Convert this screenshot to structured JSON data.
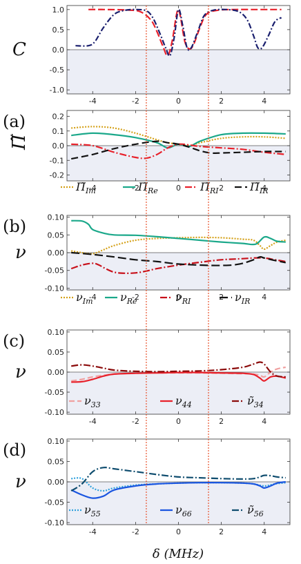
{
  "chart_data": [
    {
      "id": "C",
      "type": "line",
      "panel_label": "",
      "ylabel": "C",
      "ylim": [
        -1.1,
        1.1
      ],
      "yticks": [
        "1.0",
        "0.5",
        "0.0",
        "-0.5",
        "-1.0"
      ],
      "ytick_values": [
        1.0,
        0.5,
        0.0,
        -0.5,
        -1.0
      ],
      "xlim": [
        -5.2,
        5.2
      ],
      "xticks": [
        "-4",
        "-2",
        "0",
        "2",
        "4"
      ],
      "shade_below_zero": true,
      "series": [
        {
          "color": "#e8202a",
          "dash": "10,4",
          "x": [
            -4.2,
            -3.5,
            -2.5,
            -1.8,
            -1.3,
            -1.0,
            -0.7,
            -0.5,
            -0.3,
            -0.1,
            0.0,
            0.1,
            0.3,
            0.5,
            0.7,
            1.0,
            1.3,
            1.8,
            2.5,
            3.5,
            4.5,
            4.8
          ],
          "y": [
            1.0,
            1.0,
            0.99,
            0.95,
            0.75,
            0.45,
            0.05,
            -0.15,
            0.2,
            0.85,
            1.0,
            0.8,
            0.2,
            0.02,
            0.12,
            0.55,
            0.88,
            0.98,
            1.0,
            1.0,
            1.0,
            1.0
          ]
        },
        {
          "color": "#1a1f6e",
          "dash": "8,3,2,3",
          "x": [
            -4.8,
            -4.2,
            -3.9,
            -3.5,
            -3.0,
            -2.5,
            -2.0,
            -1.5,
            -1.2,
            -0.9,
            -0.6,
            -0.4,
            -0.2,
            0.0,
            0.2,
            0.4,
            0.6,
            0.9,
            1.2,
            1.6,
            2.2,
            2.8,
            3.2,
            3.5,
            3.7,
            3.9,
            4.2,
            4.5,
            4.8
          ],
          "y": [
            0.1,
            0.1,
            0.2,
            0.55,
            0.88,
            0.98,
            1.0,
            0.97,
            0.8,
            0.45,
            0.05,
            -0.15,
            0.3,
            1.0,
            0.6,
            0.05,
            0.05,
            0.45,
            0.85,
            0.98,
            1.0,
            0.95,
            0.75,
            0.35,
            0.05,
            0.05,
            0.35,
            0.7,
            0.8
          ]
        }
      ]
    },
    {
      "id": "a",
      "type": "line",
      "panel_label": "(a)",
      "ylabel": "Π̃",
      "ylim": [
        -0.24,
        0.24
      ],
      "yticks": [
        "0.2",
        "0.1",
        "0.0",
        "-0.1",
        "-0.2"
      ],
      "ytick_values": [
        0.2,
        0.1,
        0.0,
        -0.1,
        -0.2
      ],
      "xlim": [
        -5.2,
        5.2
      ],
      "xticks": [
        "-4",
        "-2",
        "0",
        "2",
        "4"
      ],
      "shade_below_zero": true,
      "series": [
        {
          "name": "Π̃",
          "sub": "Im",
          "color": "#d4a017",
          "dash": "2,2",
          "x": [
            -5.0,
            -4.0,
            -3.0,
            -2.0,
            -1.0,
            -0.5,
            0.0,
            0.5,
            1.0,
            2.0,
            3.0,
            4.0,
            5.0
          ],
          "y": [
            0.12,
            0.13,
            0.12,
            0.085,
            0.04,
            0.02,
            0.01,
            0.0,
            0.02,
            0.05,
            0.06,
            0.06,
            0.05
          ]
        },
        {
          "name": "Π̃",
          "sub": "Re",
          "color": "#1aa88a",
          "dash": "",
          "x": [
            -5.0,
            -4.0,
            -3.0,
            -2.0,
            -1.0,
            -0.5,
            0.0,
            0.5,
            1.0,
            2.0,
            3.0,
            4.0,
            5.0
          ],
          "y": [
            0.07,
            0.085,
            0.075,
            0.055,
            0.02,
            -0.015,
            0.01,
            -0.005,
            0.03,
            0.075,
            0.085,
            0.085,
            0.08
          ]
        },
        {
          "name": "Π̃",
          "sub": "RI",
          "color": "#e8202a",
          "dash": "10,3,2,3",
          "x": [
            -5.0,
            -4.0,
            -3.0,
            -2.0,
            -1.5,
            -1.0,
            -0.5,
            0.0,
            0.5,
            1.0,
            2.0,
            3.0,
            4.0,
            5.0
          ],
          "y": [
            0.01,
            0.0,
            -0.045,
            -0.08,
            -0.085,
            -0.06,
            -0.015,
            0.01,
            0.005,
            -0.005,
            -0.015,
            -0.025,
            -0.045,
            -0.06
          ]
        },
        {
          "name": "Π̃",
          "sub": "IR",
          "color": "#111111",
          "dash": "10,5",
          "x": [
            -5.0,
            -4.0,
            -3.0,
            -2.0,
            -1.0,
            -0.5,
            0.0,
            0.5,
            1.0,
            1.5,
            2.0,
            3.0,
            4.0,
            5.0
          ],
          "y": [
            -0.09,
            -0.06,
            -0.02,
            0.01,
            0.03,
            0.02,
            0.01,
            -0.01,
            -0.035,
            -0.05,
            -0.05,
            -0.045,
            -0.04,
            -0.04
          ]
        }
      ]
    },
    {
      "id": "b",
      "type": "line",
      "panel_label": "(b)",
      "ylabel": "ν",
      "ylim": [
        -0.105,
        0.105
      ],
      "yticks": [
        "0.10",
        "0.05",
        "0.00",
        "-0.05",
        "-0.10"
      ],
      "ytick_values": [
        0.1,
        0.05,
        0.0,
        -0.05,
        -0.1
      ],
      "xlim": [
        -5.2,
        5.2
      ],
      "xticks": [
        "-4",
        "-2",
        "0",
        "2",
        "4"
      ],
      "shade_below_zero": true,
      "series": [
        {
          "name": "ν",
          "sub": "Im",
          "color": "#d4a017",
          "dash": "2,2",
          "x": [
            -5.0,
            -4.5,
            -4.0,
            -3.5,
            -3.0,
            -2.0,
            -1.0,
            0.0,
            1.0,
            2.0,
            3.0,
            3.5,
            3.8,
            4.0,
            4.3,
            4.6,
            5.0
          ],
          "y": [
            0.005,
            0.0,
            -0.003,
            0.008,
            0.02,
            0.035,
            0.04,
            0.042,
            0.043,
            0.042,
            0.038,
            0.035,
            0.02,
            0.01,
            0.02,
            0.03,
            0.035
          ]
        },
        {
          "name": "ν",
          "sub": "Re",
          "color": "#1aa88a",
          "dash": "",
          "x": [
            -5.0,
            -4.5,
            -4.2,
            -4.0,
            -3.5,
            -3.0,
            -2.0,
            -1.0,
            0.0,
            1.0,
            2.0,
            3.0,
            3.6,
            4.0,
            4.3,
            4.6,
            5.0
          ],
          "y": [
            0.09,
            0.089,
            0.08,
            0.065,
            0.055,
            0.05,
            0.049,
            0.045,
            0.04,
            0.035,
            0.03,
            0.026,
            0.024,
            0.044,
            0.04,
            0.032,
            0.03
          ]
        },
        {
          "name": "ν",
          "sub": "RI",
          "color": "#c8101a",
          "dash": "10,3,2,3",
          "x": [
            -5.0,
            -4.5,
            -4.0,
            -3.7,
            -3.4,
            -3.0,
            -2.5,
            -2.0,
            -1.5,
            -1.0,
            0.0,
            1.0,
            2.0,
            3.0,
            3.5,
            4.0,
            4.5,
            5.0
          ],
          "y": [
            -0.045,
            -0.035,
            -0.03,
            -0.035,
            -0.045,
            -0.055,
            -0.058,
            -0.057,
            -0.052,
            -0.045,
            -0.035,
            -0.027,
            -0.02,
            -0.017,
            -0.015,
            -0.015,
            -0.02,
            -0.025
          ]
        },
        {
          "name": "ν",
          "sub": "IR",
          "color": "#111111",
          "dash": "12,5",
          "x": [
            -5.0,
            -4.0,
            -3.0,
            -2.0,
            -1.0,
            0.0,
            1.0,
            1.5,
            2.0,
            2.5,
            3.0,
            3.5,
            3.8,
            4.0,
            4.5,
            5.0
          ],
          "y": [
            0.0,
            -0.005,
            -0.012,
            -0.02,
            -0.025,
            -0.032,
            -0.035,
            -0.036,
            -0.036,
            -0.035,
            -0.03,
            -0.02,
            -0.012,
            -0.015,
            -0.022,
            -0.028
          ]
        }
      ]
    },
    {
      "id": "c",
      "type": "line",
      "panel_label": "(c)",
      "ylabel": "ν",
      "ylim": [
        -0.105,
        0.105
      ],
      "yticks": [
        "0.10",
        "0.05",
        "0.00",
        "-0.05",
        "-0.10"
      ],
      "ytick_values": [
        0.1,
        0.05,
        0.0,
        -0.05,
        -0.1
      ],
      "xlim": [
        -5.2,
        5.2
      ],
      "xticks": [
        "-4",
        "-2",
        "0",
        "2",
        "4"
      ],
      "shade_below_zero": true,
      "series": [
        {
          "name": "ν",
          "sub": "33",
          "tilde": false,
          "color": "#f0a0a0",
          "dash": "8,4",
          "x": [
            -5.0,
            -4.5,
            -4.0,
            -3.5,
            -3.0,
            -2.0,
            -1.0,
            0.0,
            1.0,
            2.0,
            3.0,
            3.5,
            3.8,
            4.0,
            4.3,
            4.6,
            5.0
          ],
          "y": [
            -0.022,
            -0.018,
            -0.012,
            -0.008,
            -0.005,
            -0.003,
            -0.002,
            -0.002,
            -0.002,
            -0.003,
            -0.004,
            -0.005,
            -0.008,
            -0.012,
            0.0,
            0.008,
            0.012
          ]
        },
        {
          "name": "ν",
          "sub": "44",
          "tilde": false,
          "color": "#e8202a",
          "dash": "",
          "x": [
            -5.0,
            -4.5,
            -4.0,
            -3.5,
            -3.0,
            -2.0,
            -1.0,
            0.0,
            1.0,
            2.0,
            3.0,
            3.5,
            3.8,
            4.0,
            4.3,
            4.6,
            5.0
          ],
          "y": [
            -0.025,
            -0.024,
            -0.018,
            -0.01,
            -0.005,
            -0.003,
            -0.002,
            -0.001,
            -0.001,
            -0.002,
            -0.003,
            -0.006,
            -0.015,
            -0.022,
            -0.012,
            -0.01,
            -0.015
          ]
        },
        {
          "name": "ν",
          "sub": "34",
          "tilde": true,
          "color": "#8b0a0a",
          "dash": "10,3,2,3",
          "x": [
            -5.0,
            -4.5,
            -4.0,
            -3.5,
            -3.0,
            -2.0,
            -1.0,
            0.0,
            1.0,
            2.0,
            3.0,
            3.5,
            3.8,
            4.0,
            4.3,
            4.6,
            5.0
          ],
          "y": [
            0.015,
            0.018,
            0.015,
            0.01,
            0.005,
            0.002,
            0.001,
            0.002,
            0.003,
            0.006,
            0.012,
            0.02,
            0.025,
            0.02,
            0.0,
            -0.01,
            -0.012
          ]
        }
      ]
    },
    {
      "id": "d",
      "type": "line",
      "panel_label": "(d)",
      "ylabel": "ν",
      "ylim": [
        -0.105,
        0.105
      ],
      "yticks": [
        "0.10",
        "0.05",
        "0.00",
        "-0.05",
        "-0.10"
      ],
      "ytick_values": [
        0.1,
        0.05,
        0.0,
        -0.05,
        -0.1
      ],
      "xlim": [
        -5.2,
        5.2
      ],
      "xticks": [
        "-4",
        "-2",
        "0",
        "2",
        "4"
      ],
      "shade_below_zero": true,
      "series": [
        {
          "name": "ν",
          "sub": "55",
          "tilde": false,
          "color": "#2ea0dc",
          "dash": "2,2",
          "x": [
            -5.0,
            -4.5,
            -4.0,
            -3.5,
            -3.0,
            -2.0,
            -1.0,
            0.0,
            1.0,
            2.0,
            3.0,
            3.5,
            4.0,
            4.5,
            5.0
          ],
          "y": [
            0.008,
            0.008,
            -0.015,
            -0.022,
            -0.015,
            -0.008,
            -0.005,
            -0.003,
            -0.002,
            -0.002,
            -0.003,
            -0.005,
            -0.01,
            -0.005,
            -0.002
          ]
        },
        {
          "name": "ν",
          "sub": "66",
          "tilde": false,
          "color": "#1a55e0",
          "dash": "",
          "x": [
            -5.0,
            -4.5,
            -4.0,
            -3.5,
            -3.0,
            -2.0,
            -1.0,
            0.0,
            1.0,
            2.0,
            3.0,
            3.5,
            3.8,
            4.0,
            4.3,
            4.6,
            5.0
          ],
          "y": [
            -0.02,
            -0.032,
            -0.04,
            -0.035,
            -0.02,
            -0.01,
            -0.005,
            -0.003,
            -0.002,
            -0.002,
            -0.003,
            -0.005,
            -0.01,
            -0.015,
            -0.01,
            -0.003,
            0.0
          ]
        },
        {
          "name": "ν",
          "sub": "56",
          "tilde": true,
          "color": "#0e4c6e",
          "dash": "10,3,2,3",
          "x": [
            -5.0,
            -4.5,
            -4.0,
            -3.5,
            -3.0,
            -2.0,
            -1.0,
            0.0,
            1.0,
            2.0,
            3.0,
            3.5,
            3.8,
            4.0,
            4.3,
            4.6,
            5.0
          ],
          "y": [
            -0.022,
            -0.005,
            0.025,
            0.035,
            0.032,
            0.025,
            0.018,
            0.012,
            0.01,
            0.008,
            0.007,
            0.008,
            0.012,
            0.016,
            0.015,
            0.012,
            0.01
          ]
        }
      ]
    }
  ],
  "xlabel": "δ (MHz)",
  "vertical_markers": [
    -1.5,
    1.4
  ],
  "marker_color": "#e8502a"
}
